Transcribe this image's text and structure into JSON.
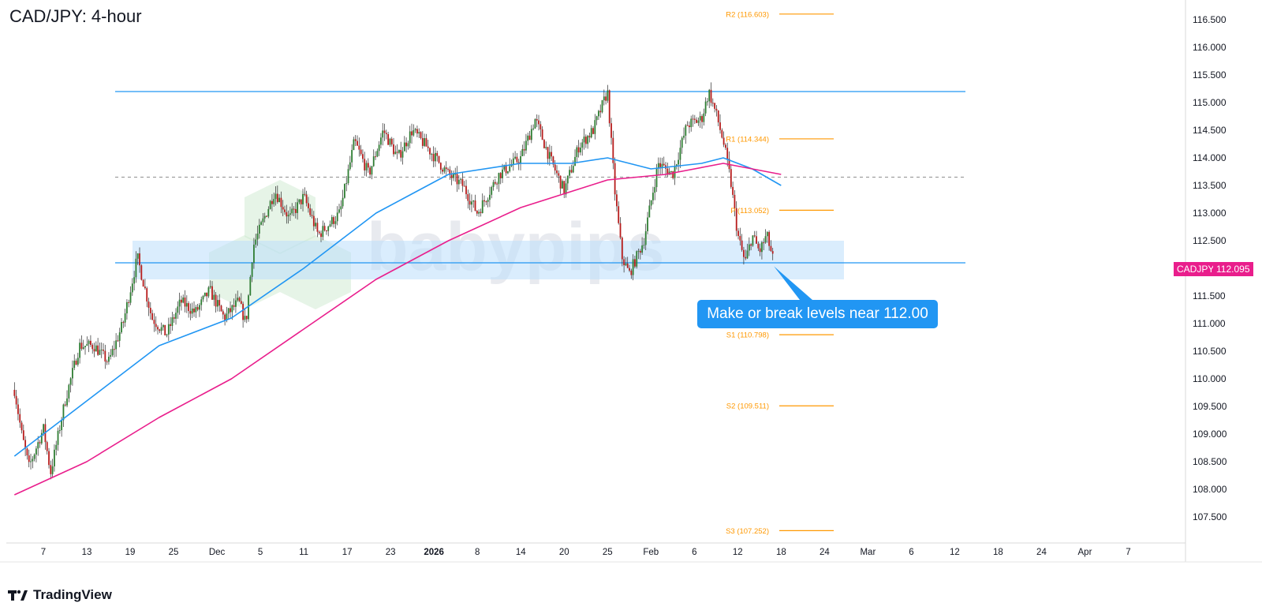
{
  "title": "CAD/JPY: 4-hour",
  "brand": "TradingView",
  "watermark": "babypips",
  "colors": {
    "up": "#26a69a",
    "down": "#ef5350",
    "candle_body_up": "#2e7d32",
    "candle_body_down": "#b71c1c",
    "ma_fast": "#2196f3",
    "ma_slow": "#e91e8c",
    "pivot": "#ff9800",
    "level_line": "#2196f3",
    "zone": "#bbdefb"
  },
  "price_label": {
    "symbol": "CADJPY",
    "value": "112.095"
  },
  "callout": {
    "text": "Make or break levels near 112.00"
  },
  "chart_data": {
    "type": "candlestick",
    "title": "CAD/JPY: 4-hour",
    "ylim": [
      107.0,
      116.8
    ],
    "y_ticks": [
      "107.500",
      "108.000",
      "108.500",
      "109.000",
      "109.500",
      "110.000",
      "110.500",
      "111.000",
      "111.500",
      "112.000",
      "112.500",
      "113.000",
      "113.500",
      "114.000",
      "114.500",
      "115.000",
      "115.500",
      "116.000",
      "116.500"
    ],
    "x_ticks": [
      "7",
      "13",
      "19",
      "25",
      "Dec",
      "5",
      "11",
      "17",
      "23",
      "2026",
      "8",
      "14",
      "20",
      "25",
      "Feb",
      "6",
      "12",
      "18",
      "24",
      "Mar",
      "6",
      "12",
      "18",
      "24",
      "Apr",
      "7"
    ],
    "price_path": [
      {
        "x": "Nov 3",
        "y": 109.8
      },
      {
        "x": "Nov 4",
        "y": 109.0
      },
      {
        "x": "Nov 5",
        "y": 108.4
      },
      {
        "x": "Nov 7",
        "y": 109.1
      },
      {
        "x": "Nov 8",
        "y": 108.3
      },
      {
        "x": "Nov 10",
        "y": 109.6
      },
      {
        "x": "Nov 12",
        "y": 110.6
      },
      {
        "x": "Nov 14",
        "y": 110.6
      },
      {
        "x": "Nov 16",
        "y": 110.3
      },
      {
        "x": "Nov 18",
        "y": 111.0
      },
      {
        "x": "Nov 20",
        "y": 112.2
      },
      {
        "x": "Nov 22",
        "y": 111.1
      },
      {
        "x": "Nov 24",
        "y": 110.8
      },
      {
        "x": "Nov 26",
        "y": 111.4
      },
      {
        "x": "Nov 28",
        "y": 111.2
      },
      {
        "x": "Nov 30",
        "y": 111.6
      },
      {
        "x": "Dec 2",
        "y": 111.1
      },
      {
        "x": "Dec 4",
        "y": 111.4
      },
      {
        "x": "Dec 5",
        "y": 111.0
      },
      {
        "x": "Dec 6",
        "y": 112.4
      },
      {
        "x": "Dec 9",
        "y": 113.4
      },
      {
        "x": "Dec 11",
        "y": 112.9
      },
      {
        "x": "Dec 13",
        "y": 113.3
      },
      {
        "x": "Dec 15",
        "y": 112.6
      },
      {
        "x": "Dec 18",
        "y": 113.0
      },
      {
        "x": "Dec 20",
        "y": 114.3
      },
      {
        "x": "Dec 22",
        "y": 113.7
      },
      {
        "x": "Dec 24",
        "y": 114.5
      },
      {
        "x": "Dec 26",
        "y": 114.0
      },
      {
        "x": "Dec 28",
        "y": 114.5
      },
      {
        "x": "Dec 30",
        "y": 114.2
      },
      {
        "x": "Jan 2",
        "y": 113.7
      },
      {
        "x": "Jan 4",
        "y": 113.5
      },
      {
        "x": "Jan 6",
        "y": 113.0
      },
      {
        "x": "Jan 9",
        "y": 113.7
      },
      {
        "x": "Jan 12",
        "y": 114.0
      },
      {
        "x": "Jan 14",
        "y": 114.7
      },
      {
        "x": "Jan 16",
        "y": 114.0
      },
      {
        "x": "Jan 18",
        "y": 113.4
      },
      {
        "x": "Jan 20",
        "y": 114.2
      },
      {
        "x": "Jan 22",
        "y": 114.5
      },
      {
        "x": "Jan 24",
        "y": 115.2
      },
      {
        "x": "Jan 25",
        "y": 113.4
      },
      {
        "x": "Jan 26",
        "y": 112.2
      },
      {
        "x": "Jan 27",
        "y": 111.9
      },
      {
        "x": "Jan 29",
        "y": 112.5
      },
      {
        "x": "Jan 31",
        "y": 113.9
      },
      {
        "x": "Feb 2",
        "y": 113.7
      },
      {
        "x": "Feb 4",
        "y": 114.6
      },
      {
        "x": "Feb 6",
        "y": 114.7
      },
      {
        "x": "Feb 7",
        "y": 115.2
      },
      {
        "x": "Feb 8",
        "y": 114.8
      },
      {
        "x": "Feb 9",
        "y": 114.3
      },
      {
        "x": "Feb 10",
        "y": 113.6
      },
      {
        "x": "Feb 11",
        "y": 112.6
      },
      {
        "x": "Feb 12",
        "y": 112.1
      },
      {
        "x": "Feb 13",
        "y": 112.6
      },
      {
        "x": "Feb 14",
        "y": 112.3
      },
      {
        "x": "Feb 15",
        "y": 112.6
      },
      {
        "x": "Feb 16",
        "y": 112.1
      }
    ],
    "ma_fast": [
      {
        "x": "Nov 3",
        "y": 108.6
      },
      {
        "x": "Nov 13",
        "y": 109.6
      },
      {
        "x": "Nov 23",
        "y": 110.6
      },
      {
        "x": "Dec 3",
        "y": 111.1
      },
      {
        "x": "Dec 13",
        "y": 112.0
      },
      {
        "x": "Dec 23",
        "y": 113.0
      },
      {
        "x": "Jan 2",
        "y": 113.7
      },
      {
        "x": "Jan 12",
        "y": 113.9
      },
      {
        "x": "Jan 19",
        "y": 113.9
      },
      {
        "x": "Jan 24",
        "y": 114.0
      },
      {
        "x": "Jan 30",
        "y": 113.8
      },
      {
        "x": "Feb 6",
        "y": 113.9
      },
      {
        "x": "Feb 9",
        "y": 114.0
      },
      {
        "x": "Feb 13",
        "y": 113.8
      },
      {
        "x": "Feb 17",
        "y": 113.5
      }
    ],
    "ma_slow": [
      {
        "x": "Nov 3",
        "y": 107.9
      },
      {
        "x": "Nov 13",
        "y": 108.5
      },
      {
        "x": "Nov 23",
        "y": 109.3
      },
      {
        "x": "Dec 3",
        "y": 110.0
      },
      {
        "x": "Dec 13",
        "y": 110.9
      },
      {
        "x": "Dec 23",
        "y": 111.8
      },
      {
        "x": "Jan 2",
        "y": 112.5
      },
      {
        "x": "Jan 12",
        "y": 113.1
      },
      {
        "x": "Jan 24",
        "y": 113.6
      },
      {
        "x": "Feb 1",
        "y": 113.7
      },
      {
        "x": "Feb 9",
        "y": 113.9
      },
      {
        "x": "Feb 17",
        "y": 113.7
      }
    ],
    "pivots": [
      {
        "name": "R2",
        "value": 116.603,
        "label": "R2 (116.603)"
      },
      {
        "name": "R1",
        "value": 114.344,
        "label": "R1 (114.344)"
      },
      {
        "name": "P",
        "value": 113.052,
        "label": "P (113.052)"
      },
      {
        "name": "S1",
        "value": 110.798,
        "label": "S1 (110.798)"
      },
      {
        "name": "S2",
        "value": 109.511,
        "label": "S2 (109.511)"
      },
      {
        "name": "S3",
        "value": 107.252,
        "label": "S3 (107.252)"
      }
    ],
    "levels": [
      {
        "value": 115.2,
        "style": "solid"
      },
      {
        "value": 112.1,
        "style": "solid"
      },
      {
        "value": 113.65,
        "style": "dashed"
      }
    ],
    "zone": {
      "from": 111.8,
      "to": 112.5
    },
    "last_price": 112.095
  }
}
